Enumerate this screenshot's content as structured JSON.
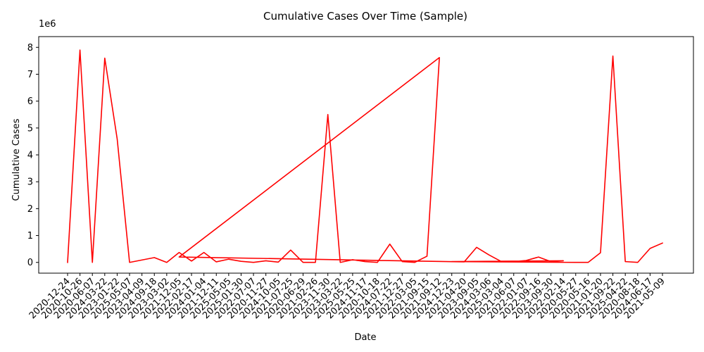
{
  "chart_data": {
    "type": "line",
    "title": "Cumulative Cases Over Time (Sample)",
    "xlabel": "Date",
    "ylabel": "Cumulative Cases",
    "y_scale_label": "1e6",
    "y_tick_values": [
      0,
      1,
      2,
      3,
      4,
      5,
      6,
      7,
      8
    ],
    "ylim": [
      -0.4,
      8.4
    ],
    "grid": false,
    "legend": "none",
    "line_color": "#ff0000",
    "x_tick_labels": [
      "2020-12-24",
      "2020-10-26",
      "2020-06-07",
      "2024-03-22",
      "2023-01-22",
      "2025-05-07",
      "2023-04-09",
      "2024-09-18",
      "2023-03-02",
      "2021-12-05",
      "2022-02-17",
      "2024-01-04",
      "2021-12-11",
      "2025-05-05",
      "2025-01-30",
      "2022-07-07",
      "2020-11-27",
      "2024-10-05",
      "2021-07-25",
      "2020-06-29",
      "2021-02-26",
      "2023-11-30",
      "2023-03-22",
      "2025-05-25",
      "2024-11-17",
      "2020-10-18",
      "2024-07-22",
      "2021-12-27",
      "2022-03-05",
      "2021-09-15",
      "2021-09-12",
      "2024-12-23",
      "2021-04-20",
      "2023-09-05",
      "2024-03-06",
      "2025-03-04",
      "2021-06-07",
      "2022-01-07",
      "2022-09-16",
      "2023-09-30",
      "2022-02-14",
      "2020-05-27",
      "2020-05-16",
      "2021-01-20",
      "2021-09-22",
      "2025-04-22",
      "2020-08-18",
      "2024-06-17",
      "2021-05-09"
    ],
    "series": [
      {
        "points": [
          {
            "x": "2020-12-24",
            "y": 0.0
          },
          {
            "x": "2020-10-26",
            "y": 7.9
          },
          {
            "x": "2020-06-07",
            "y": 0.0
          },
          {
            "x": "2024-03-22",
            "y": 7.6
          },
          {
            "x": "2023-01-22",
            "y": 4.6
          },
          {
            "x": "2025-05-07",
            "y": 0.0
          },
          {
            "x": "2024-09-18",
            "y": 0.18
          },
          {
            "x": "2023-03-02",
            "y": 0.0
          },
          {
            "x": "2021-12-05",
            "y": 0.37
          },
          {
            "x": "2022-02-17",
            "y": 0.05
          },
          {
            "x": "2024-01-04",
            "y": 0.37
          },
          {
            "x": "2021-12-11",
            "y": 0.02
          },
          {
            "x": "2025-05-05",
            "y": 0.12
          },
          {
            "x": "2025-01-30",
            "y": 0.04
          },
          {
            "x": "2022-07-07",
            "y": 0.0
          },
          {
            "x": "2020-11-27",
            "y": 0.06
          },
          {
            "x": "2024-10-05",
            "y": 0.01
          },
          {
            "x": "2021-07-25",
            "y": 0.46
          },
          {
            "x": "2020-06-29",
            "y": 0.0
          },
          {
            "x": "2021-02-26",
            "y": 0.0
          },
          {
            "x": "2023-11-30",
            "y": 5.5
          },
          {
            "x": "2023-03-22",
            "y": 0.0
          },
          {
            "x": "2025-05-25",
            "y": 0.1
          },
          {
            "x": "2024-11-17",
            "y": 0.03
          },
          {
            "x": "2020-10-18",
            "y": 0.0
          },
          {
            "x": "2024-07-22",
            "y": 0.68
          },
          {
            "x": "2021-12-27",
            "y": 0.03
          },
          {
            "x": "2022-03-05",
            "y": 0.0
          },
          {
            "x": "2021-09-15",
            "y": 0.23
          },
          {
            "x": "2021-09-12",
            "y": 7.62
          },
          {
            "x": "2021-12-05",
            "y": 0.2
          },
          {
            "x": "2021-04-20",
            "y": 0.02
          },
          {
            "x": "2023-09-05",
            "y": 0.56
          },
          {
            "x": "2024-03-06",
            "y": 0.28
          },
          {
            "x": "2025-03-04",
            "y": 0.03
          },
          {
            "x": "2021-06-07",
            "y": 0.03
          },
          {
            "x": "2022-01-07",
            "y": 0.07
          },
          {
            "x": "2022-09-16",
            "y": 0.2
          },
          {
            "x": "2023-09-30",
            "y": 0.03
          },
          {
            "x": "2022-02-14",
            "y": 0.06
          },
          {
            "x": "2024-12-23",
            "y": 0.03
          },
          {
            "x": "2020-05-27",
            "y": 0.0
          },
          {
            "x": "2020-05-16",
            "y": 0.0
          },
          {
            "x": "2021-01-20",
            "y": 0.36
          },
          {
            "x": "2021-09-22",
            "y": 7.68
          },
          {
            "x": "2025-04-22",
            "y": 0.03
          },
          {
            "x": "2020-08-18",
            "y": 0.0
          },
          {
            "x": "2024-06-17",
            "y": 0.52
          },
          {
            "x": "2021-05-09",
            "y": 0.72
          }
        ]
      }
    ]
  }
}
